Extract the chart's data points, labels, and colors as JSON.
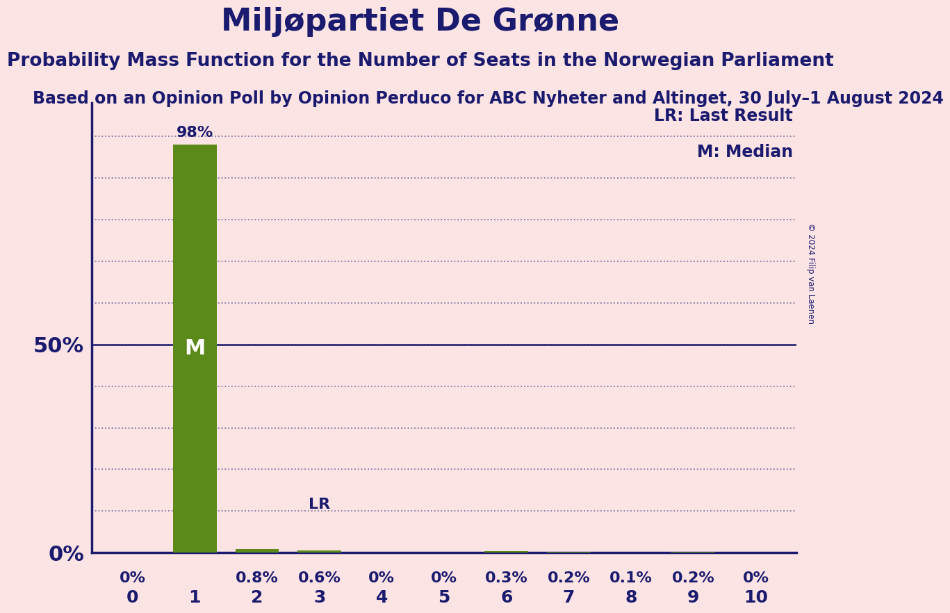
{
  "title": "Miljøpartiet De Grønne",
  "subtitle": "Probability Mass Function for the Number of Seats in the Norwegian Parliament",
  "subtitle2": "Based on an Opinion Poll by Opinion Perduco for ABC Nyheter and Altinget, 30 July–1 August 2024",
  "copyright": "© 2024 Filip van Laenen",
  "seats": [
    0,
    1,
    2,
    3,
    4,
    5,
    6,
    7,
    8,
    9,
    10
  ],
  "probabilities": [
    0.0,
    0.98,
    0.008,
    0.006,
    0.0,
    0.0,
    0.003,
    0.002,
    0.001,
    0.002,
    0.0
  ],
  "prob_labels": [
    "0%",
    "98%",
    "0.8%",
    "0.6%",
    "0%",
    "0%",
    "0.3%",
    "0.2%",
    "0.1%",
    "0.2%",
    "0%"
  ],
  "bar_color": "#5b8a1a",
  "background_color": "#fce4e4",
  "text_color": "#1a1a6e",
  "median_seat": 1,
  "last_result_seat": 3,
  "legend_lr": "LR: Last Result",
  "legend_m": "M: Median",
  "ylim": [
    0,
    1.08
  ],
  "title_fontsize": 32,
  "subtitle_fontsize": 19,
  "subtitle2_fontsize": 17,
  "bar_label_fontsize": 16,
  "legend_fontsize": 17,
  "m_label_fontsize": 22,
  "lr_label_fontsize": 16,
  "tick_fontsize": 18,
  "ylabel_fontsize": 22
}
